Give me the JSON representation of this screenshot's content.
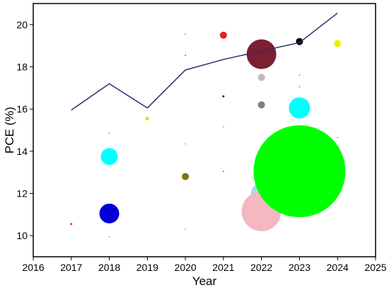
{
  "chart_data": {
    "type": "scatter",
    "xlabel": "Year",
    "ylabel": "PCE (%)",
    "xlim": [
      2016,
      2025
    ],
    "ylim": [
      9,
      21
    ],
    "x_ticks": [
      "2016",
      "2017",
      "2018",
      "2019",
      "2020",
      "2021",
      "2022",
      "2023",
      "2024",
      "2025"
    ],
    "y_ticks": [
      "10",
      "12",
      "14",
      "16",
      "18",
      "20"
    ],
    "grid": false,
    "line_color": "#2e2e6e",
    "trend_line": [
      {
        "x": 2017,
        "y": 15.95
      },
      {
        "x": 2018,
        "y": 17.2
      },
      {
        "x": 2019,
        "y": 16.05
      },
      {
        "x": 2020,
        "y": 17.85
      },
      {
        "x": 2021,
        "y": 18.35
      },
      {
        "x": 2022,
        "y": 18.75
      },
      {
        "x": 2023,
        "y": 19.15
      },
      {
        "x": 2024,
        "y": 20.55
      }
    ],
    "bubbles": [
      {
        "x": 2017,
        "y": 10.55,
        "size": 3,
        "color": "#e0302a"
      },
      {
        "x": 2018,
        "y": 13.75,
        "size": 24,
        "color": "#00ffff"
      },
      {
        "x": 2018,
        "y": 11.05,
        "size": 28,
        "color": "#0000d6"
      },
      {
        "x": 2018,
        "y": 14.85,
        "size": 1.5,
        "color": "#cc33cc"
      },
      {
        "x": 2018,
        "y": 9.95,
        "size": 1.5,
        "color": "#cc5555"
      },
      {
        "x": 2019,
        "y": 15.55,
        "size": 5,
        "color": "#e0e000"
      },
      {
        "x": 2020,
        "y": 19.55,
        "size": 1.5,
        "color": "#993333"
      },
      {
        "x": 2020,
        "y": 18.55,
        "size": 1.5,
        "color": "#333399"
      },
      {
        "x": 2020,
        "y": 14.35,
        "size": 1.2,
        "color": "#cc6666"
      },
      {
        "x": 2020,
        "y": 12.8,
        "size": 10,
        "color": "#807400"
      },
      {
        "x": 2020,
        "y": 10.3,
        "size": 1.2,
        "color": "#cc6666"
      },
      {
        "x": 2021,
        "y": 19.5,
        "size": 10,
        "color": "#e0202a"
      },
      {
        "x": 2021,
        "y": 16.6,
        "size": 3,
        "color": "#1a1a6e"
      },
      {
        "x": 2021,
        "y": 15.15,
        "size": 1.5,
        "color": "#cc5577"
      },
      {
        "x": 2021,
        "y": 13.05,
        "size": 1.5,
        "color": "#3333aa"
      },
      {
        "x": 2022,
        "y": 18.6,
        "size": 42,
        "color": "#7a2030"
      },
      {
        "x": 2022,
        "y": 17.5,
        "size": 10,
        "color": "#bdbdbd"
      },
      {
        "x": 2022,
        "y": 16.2,
        "size": 10,
        "color": "#808080"
      },
      {
        "x": 2022,
        "y": 12.0,
        "size": 30,
        "color": "#add8e6"
      },
      {
        "x": 2022,
        "y": 11.15,
        "size": 56,
        "color": "#f4b8c0"
      },
      {
        "x": 2023,
        "y": 19.2,
        "size": 10,
        "color": "#000000"
      },
      {
        "x": 2023,
        "y": 17.6,
        "size": 1.5,
        "color": "#cc3333"
      },
      {
        "x": 2023,
        "y": 17.05,
        "size": 1.5,
        "color": "#cc3333"
      },
      {
        "x": 2023,
        "y": 16.05,
        "size": 30,
        "color": "#00ffff"
      },
      {
        "x": 2023,
        "y": 13.05,
        "size": 130,
        "color": "#00ff00"
      },
      {
        "x": 2024,
        "y": 19.1,
        "size": 10,
        "color": "#f0f000"
      },
      {
        "x": 2024,
        "y": 14.65,
        "size": 1.5,
        "color": "#cc33cc"
      }
    ]
  }
}
